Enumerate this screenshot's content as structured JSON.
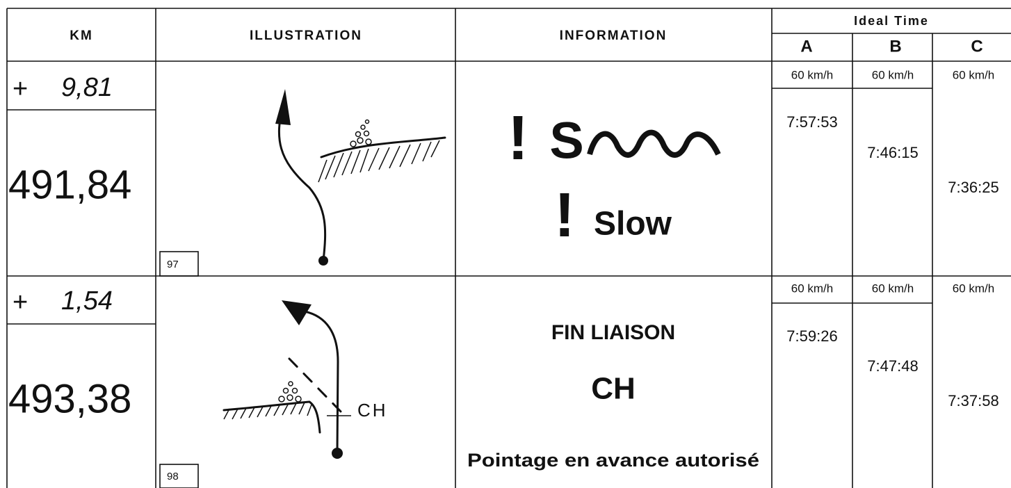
{
  "header": {
    "km": "KM",
    "illustration": "ILLUSTRATION",
    "information": "INFORMATION",
    "ideal_time": "Ideal Time",
    "columns": [
      "A",
      "B",
      "C"
    ]
  },
  "rows": [
    {
      "sign": "+",
      "partial": "9,81",
      "total": "491,84",
      "number": "97",
      "info": [
        "!",
        "S",
        "!",
        "Slow"
      ],
      "speeds": [
        "60 km/h",
        "60 km/h",
        "60 km/h"
      ],
      "times": [
        "7:57:53",
        "7:46:15",
        "7:36:25"
      ]
    },
    {
      "sign": "+",
      "partial": "1,54",
      "total": "493,38",
      "number": "98",
      "illustration_label": "CH",
      "info": [
        "FIN LIAISON",
        "CH",
        "Pointage en avance autorisé"
      ],
      "speeds": [
        "60 km/h",
        "60 km/h",
        "60 km/h"
      ],
      "times": [
        "7:59:26",
        "7:47:48",
        "7:37:58"
      ]
    }
  ]
}
